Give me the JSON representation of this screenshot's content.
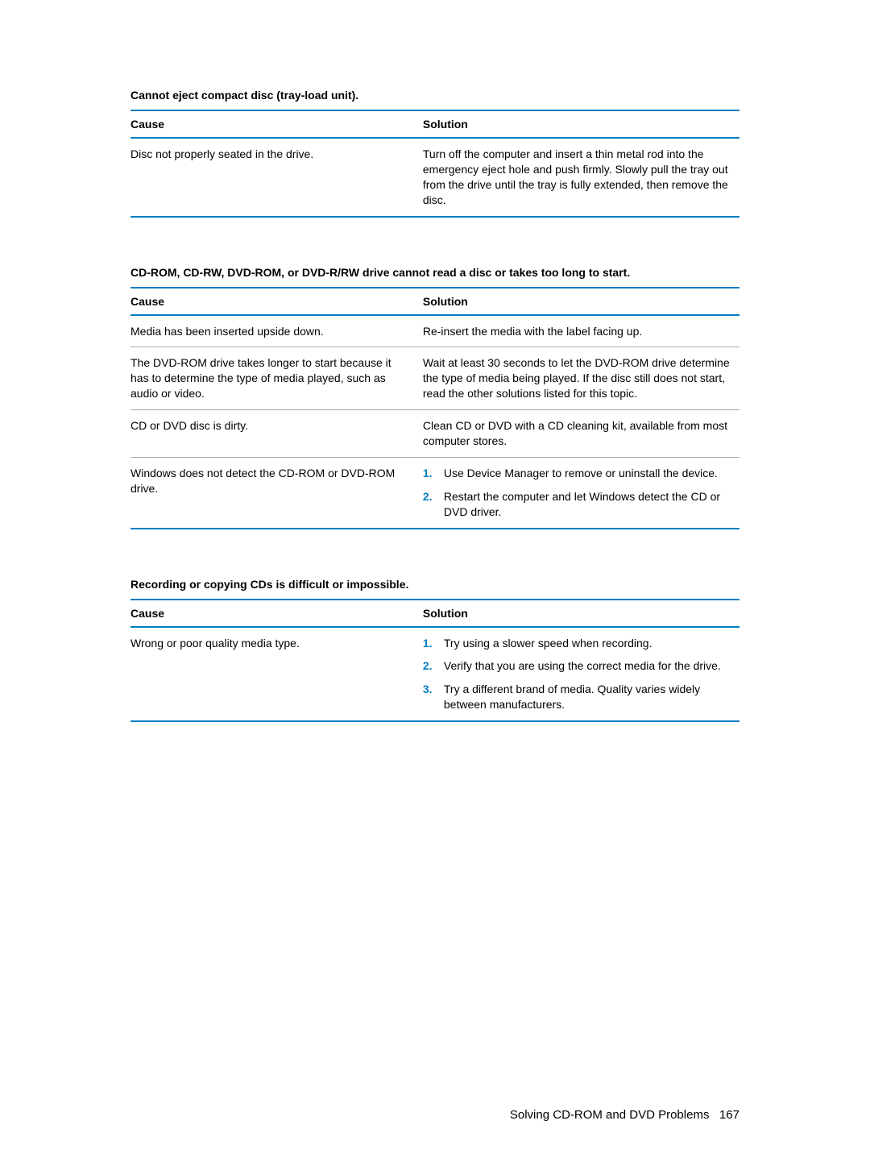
{
  "colors": {
    "rule": "#007dc3",
    "text": "#000000",
    "divider": "#a8a8a8",
    "background": "#ffffff"
  },
  "typography": {
    "base_fontsize": 14,
    "title_weight": "bold",
    "footer_fontsize": 15
  },
  "tables": [
    {
      "title": "Cannot eject compact disc (tray-load unit).",
      "header": {
        "cause": "Cause",
        "solution": "Solution"
      },
      "rows": [
        {
          "cause": "Disc not properly seated in the drive.",
          "solution_type": "text",
          "solution_text": "Turn off the computer and insert a thin metal rod into the emergency eject hole and push firmly. Slowly pull the tray out from the drive until the tray is fully extended, then remove the disc."
        }
      ]
    },
    {
      "title": "CD-ROM, CD-RW, DVD-ROM, or DVD-R/RW drive cannot read a disc or takes too long to start.",
      "header": {
        "cause": "Cause",
        "solution": "Solution"
      },
      "rows": [
        {
          "cause": "Media has been inserted upside down.",
          "solution_type": "text",
          "solution_text": "Re-insert the media with the label facing up."
        },
        {
          "cause": "The DVD-ROM drive takes longer to start because it has to determine the type of media played, such as audio or video.",
          "solution_type": "text",
          "solution_text": "Wait at least 30 seconds to let the DVD-ROM drive determine the type of media being played. If the disc still does not start, read the other solutions listed for this topic."
        },
        {
          "cause": "CD or DVD disc is dirty.",
          "solution_type": "text",
          "solution_text": "Clean CD or DVD with a CD cleaning kit, available from most computer stores."
        },
        {
          "cause": "Windows does not detect the CD-ROM or DVD-ROM drive.",
          "solution_type": "list",
          "solution_list": [
            "Use Device Manager to remove or uninstall the device.",
            "Restart the computer and let Windows detect the CD or DVD driver."
          ]
        }
      ]
    },
    {
      "title": "Recording or copying CDs is difficult or impossible.",
      "header": {
        "cause": "Cause",
        "solution": "Solution"
      },
      "rows": [
        {
          "cause": "Wrong or poor quality media type.",
          "solution_type": "list",
          "solution_list": [
            "Try using a slower speed when recording.",
            "Verify that you are using the correct media for the drive.",
            "Try a different brand of media. Quality varies widely between manufacturers."
          ]
        }
      ]
    }
  ],
  "footer": {
    "text": "Solving CD-ROM and DVD Problems",
    "page": "167"
  }
}
